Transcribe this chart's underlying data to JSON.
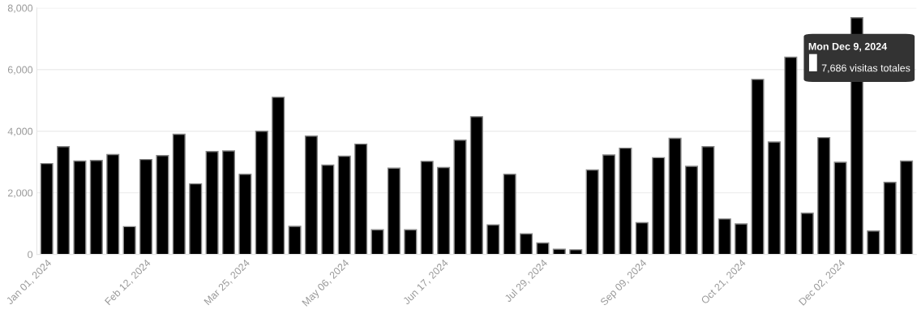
{
  "chart_data": {
    "type": "bar",
    "categories": [
      "Jan 01, 2024",
      null,
      null,
      null,
      null,
      null,
      "Feb 12, 2024",
      null,
      null,
      null,
      null,
      null,
      "Mar 25, 2024",
      null,
      null,
      null,
      null,
      null,
      "May 06, 2024",
      null,
      null,
      null,
      null,
      null,
      "Jun 17, 2024",
      null,
      null,
      null,
      null,
      null,
      "Jul 29, 2024",
      null,
      null,
      null,
      null,
      null,
      "Sep 09, 2024",
      null,
      null,
      null,
      null,
      null,
      "Oct 21, 2024",
      null,
      null,
      null,
      null,
      null,
      "Dec 02, 2024",
      null,
      null,
      null,
      null
    ],
    "values": [
      2950,
      3500,
      3030,
      3050,
      3240,
      900,
      3080,
      3210,
      3900,
      2290,
      3340,
      3360,
      2600,
      4000,
      5100,
      910,
      3840,
      2900,
      3190,
      3580,
      800,
      2800,
      800,
      3020,
      2820,
      3710,
      4470,
      960,
      2600,
      670,
      370,
      170,
      150,
      2740,
      3230,
      3450,
      1030,
      3140,
      3770,
      2860,
      3500,
      1150,
      990,
      5680,
      3650,
      6400,
      1340,
      3790,
      2990,
      7686,
      760,
      2340,
      3030
    ],
    "color": "#000000",
    "ylim": [
      0,
      8000
    ],
    "yticks": [
      0,
      {
        "value": 2000,
        "label": "2,000"
      },
      {
        "value": 4000,
        "label": "4,000"
      },
      {
        "value": 6000,
        "label": "6,000"
      },
      {
        "value": 8000,
        "label": "8,000"
      }
    ],
    "grid": "y",
    "annotations": [
      "Mon Dec 9, 2024",
      "7,686 visitas totales"
    ]
  }
}
